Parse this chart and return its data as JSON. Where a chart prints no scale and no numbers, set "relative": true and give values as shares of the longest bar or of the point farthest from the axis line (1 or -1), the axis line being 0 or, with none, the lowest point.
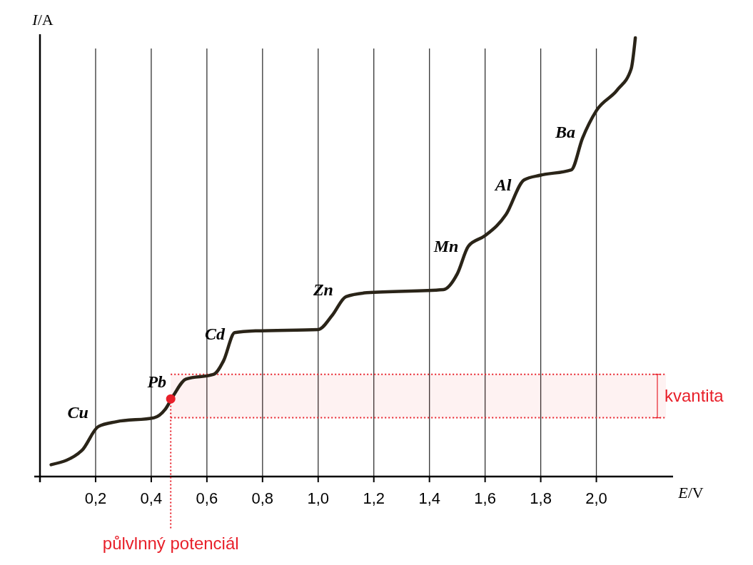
{
  "chart_data": {
    "type": "line",
    "xlabel": "E/V",
    "ylabel": "I/A",
    "relative": true,
    "grid": "x",
    "marker": "none",
    "line_style": "solid",
    "xlim": [
      0,
      2.25
    ],
    "xticks": [
      {
        "value": 0.2,
        "label": "0,2"
      },
      {
        "value": 0.4,
        "label": "0,4"
      },
      {
        "value": 0.6,
        "label": "0,6"
      },
      {
        "value": 0.8,
        "label": "0,8"
      },
      {
        "value": 1.0,
        "label": "1,0"
      },
      {
        "value": 1.2,
        "label": "1,2"
      },
      {
        "value": 1.4,
        "label": "1,4"
      },
      {
        "value": 1.6,
        "label": "1,6"
      },
      {
        "value": 1.8,
        "label": "1,8"
      },
      {
        "value": 2.0,
        "label": "2,0"
      }
    ],
    "series": [
      {
        "color": "#2a2418",
        "x": [
          0.04,
          0.15,
          0.21,
          0.275,
          0.41,
          0.45,
          0.48,
          0.525,
          0.625,
          0.66,
          0.7,
          0.775,
          1.0,
          1.05,
          1.1,
          1.175,
          1.45,
          1.5,
          1.54,
          1.6,
          1.675,
          1.74,
          1.8,
          1.91,
          1.95,
          2.0,
          2.075,
          2.125,
          2.14
        ],
        "values": [
          0.027,
          0.059,
          0.114,
          0.125,
          0.134,
          0.153,
          0.185,
          0.222,
          0.233,
          0.264,
          0.328,
          0.332,
          0.335,
          0.367,
          0.41,
          0.419,
          0.426,
          0.462,
          0.525,
          0.549,
          0.597,
          0.676,
          0.687,
          0.699,
          0.771,
          0.834,
          0.881,
          0.929,
          1.0
        ]
      },
      {
        "type": "scatter",
        "color": "#e8202a",
        "x": [
          0.47
        ],
        "values": [
          0.177
        ],
        "marker": "circle"
      }
    ],
    "ref_lines": [
      {
        "axis": "x",
        "value": 0.47,
        "label": "půlvlnný potenciál",
        "color": "#e8202a",
        "line_style": "dotted"
      }
    ],
    "bands": [
      {
        "axis": "y",
        "from": 0.134,
        "to": 0.233,
        "label": "kvantita",
        "color": "#e8202a"
      }
    ],
    "annotations": [
      {
        "text": "Cu",
        "x": 0.2,
        "y": 0.11
      },
      {
        "text": "Pb",
        "x": 0.48,
        "y": 0.18
      },
      {
        "text": "Cd",
        "x": 0.69,
        "y": 0.29
      },
      {
        "text": "Zn",
        "x": 1.08,
        "y": 0.39
      },
      {
        "text": "Mn",
        "x": 1.53,
        "y": 0.49
      },
      {
        "text": "Al",
        "x": 1.72,
        "y": 0.63
      },
      {
        "text": "Ba",
        "x": 1.95,
        "y": 0.75
      }
    ]
  }
}
